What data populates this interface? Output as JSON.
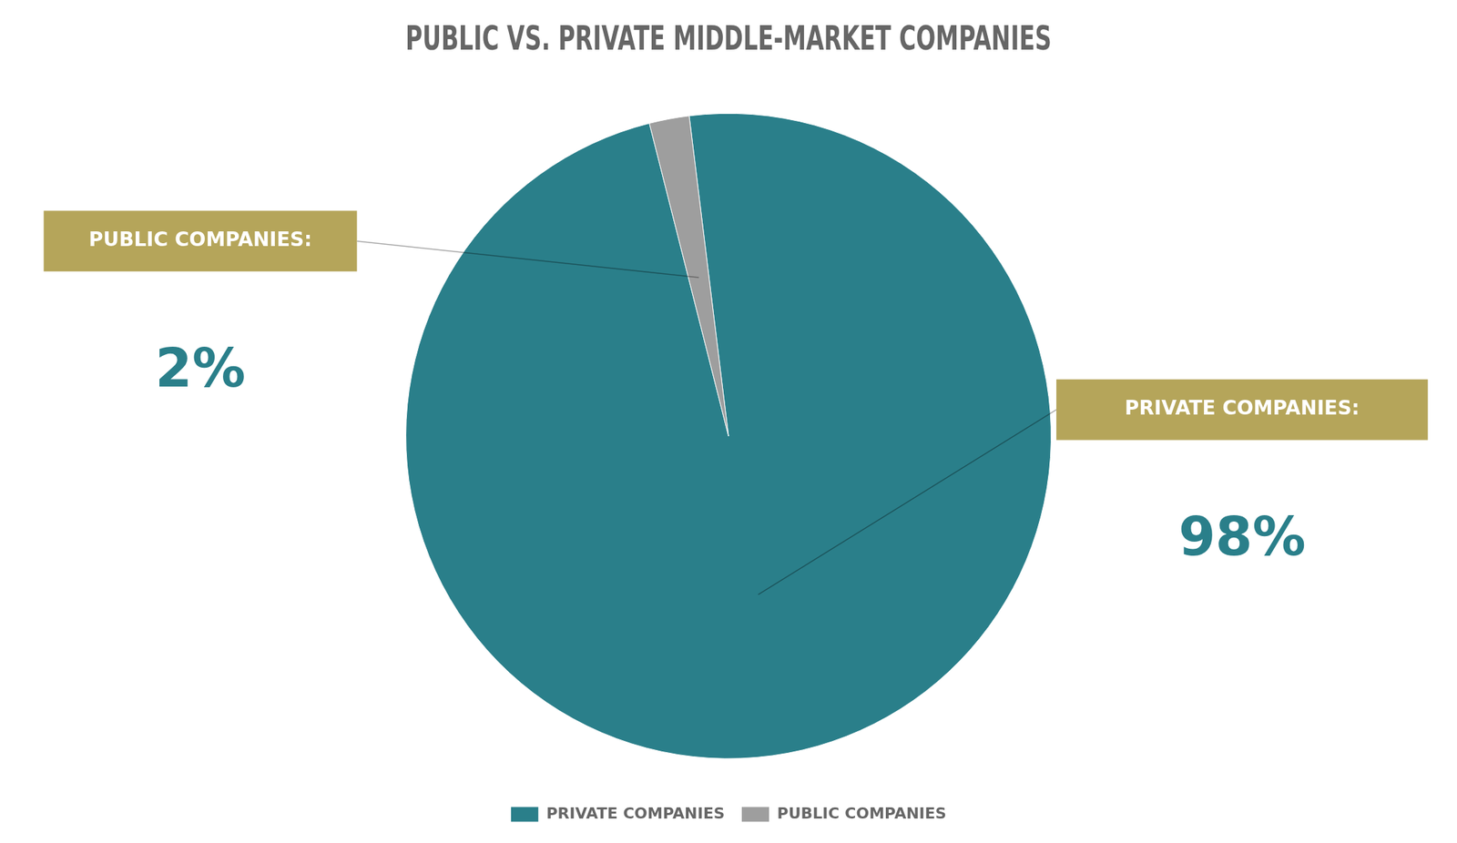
{
  "chart_data": {
    "type": "pie",
    "title": "PUBLIC VS. PRIVATE MIDDLE-MARKET COMPANIES",
    "categories": [
      "PRIVATE COMPANIES",
      "PUBLIC COMPANIES"
    ],
    "values": [
      98,
      2
    ],
    "colors": [
      "#2a7f8a",
      "#9e9e9e"
    ],
    "legend": "bottom",
    "annotations": [
      {
        "text": "PUBLIC COMPANIES:",
        "value": 2,
        "label": "2%",
        "color": "#2a7f8a",
        "box_color": "#b5a55a"
      },
      {
        "text": "PRIVATE COMPANIES:",
        "value": 98,
        "label": "98%",
        "color": "#2a7f8a",
        "box_color": "#b5a55a"
      }
    ]
  }
}
